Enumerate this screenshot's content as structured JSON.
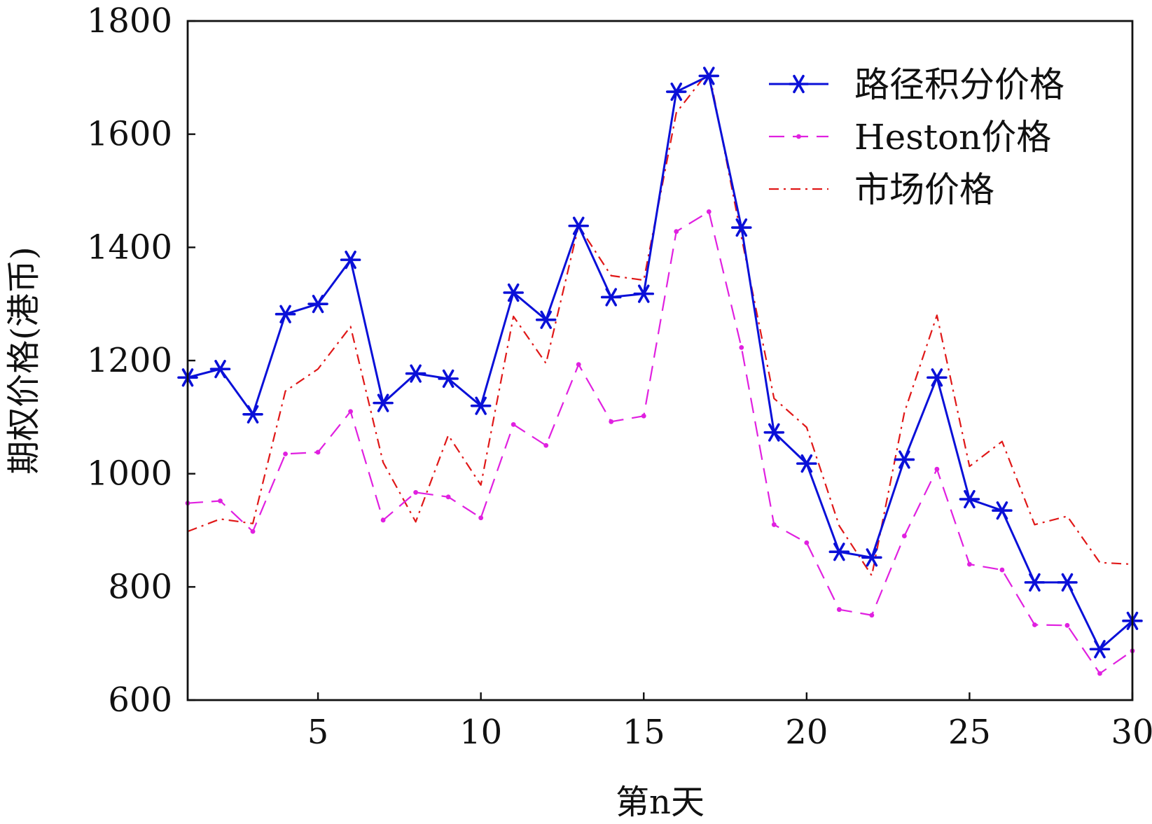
{
  "chart_data": {
    "type": "line",
    "xlabel": "第n天",
    "ylabel": "期权价格(港币)",
    "xlim": [
      1,
      30
    ],
    "ylim": [
      600,
      1800
    ],
    "xticks": [
      5,
      10,
      15,
      20,
      25,
      30
    ],
    "yticks": [
      600,
      800,
      1000,
      1200,
      1400,
      1600,
      1800
    ],
    "grid": false,
    "legend_position": "top-right",
    "x": [
      1,
      2,
      3,
      4,
      5,
      6,
      7,
      8,
      9,
      10,
      11,
      12,
      13,
      14,
      15,
      16,
      17,
      18,
      19,
      20,
      21,
      22,
      23,
      24,
      25,
      26,
      27,
      28,
      29,
      30
    ],
    "series": [
      {
        "name": "路径积分价格",
        "color": "#0a10d8",
        "line_style": "solid",
        "marker": "asterisk",
        "values": [
          1170,
          1185,
          1105,
          1282,
          1300,
          1378,
          1125,
          1177,
          1168,
          1120,
          1320,
          1272,
          1438,
          1312,
          1318,
          1675,
          1703,
          1435,
          1073,
          1018,
          862,
          852,
          1025,
          1170,
          955,
          935,
          808,
          808,
          690,
          740
        ]
      },
      {
        "name": "Heston价格",
        "color": "#e020e0",
        "line_style": "dashed",
        "marker": "dot",
        "values": [
          948,
          952,
          898,
          1035,
          1038,
          1110,
          918,
          967,
          959,
          922,
          1087,
          1050,
          1193,
          1092,
          1102,
          1428,
          1463,
          1223,
          910,
          878,
          760,
          750,
          890,
          1008,
          840,
          830,
          733,
          732,
          647,
          687
        ]
      },
      {
        "name": "市场价格",
        "color": "#e01818",
        "line_style": "dashdot",
        "marker": "none",
        "values": [
          898,
          920,
          912,
          1146,
          1185,
          1260,
          1020,
          915,
          1068,
          980,
          1278,
          1195,
          1438,
          1350,
          1342,
          1638,
          1712,
          1418,
          1133,
          1082,
          908,
          820,
          1108,
          1280,
          1013,
          1057,
          910,
          925,
          843,
          840
        ]
      }
    ]
  }
}
